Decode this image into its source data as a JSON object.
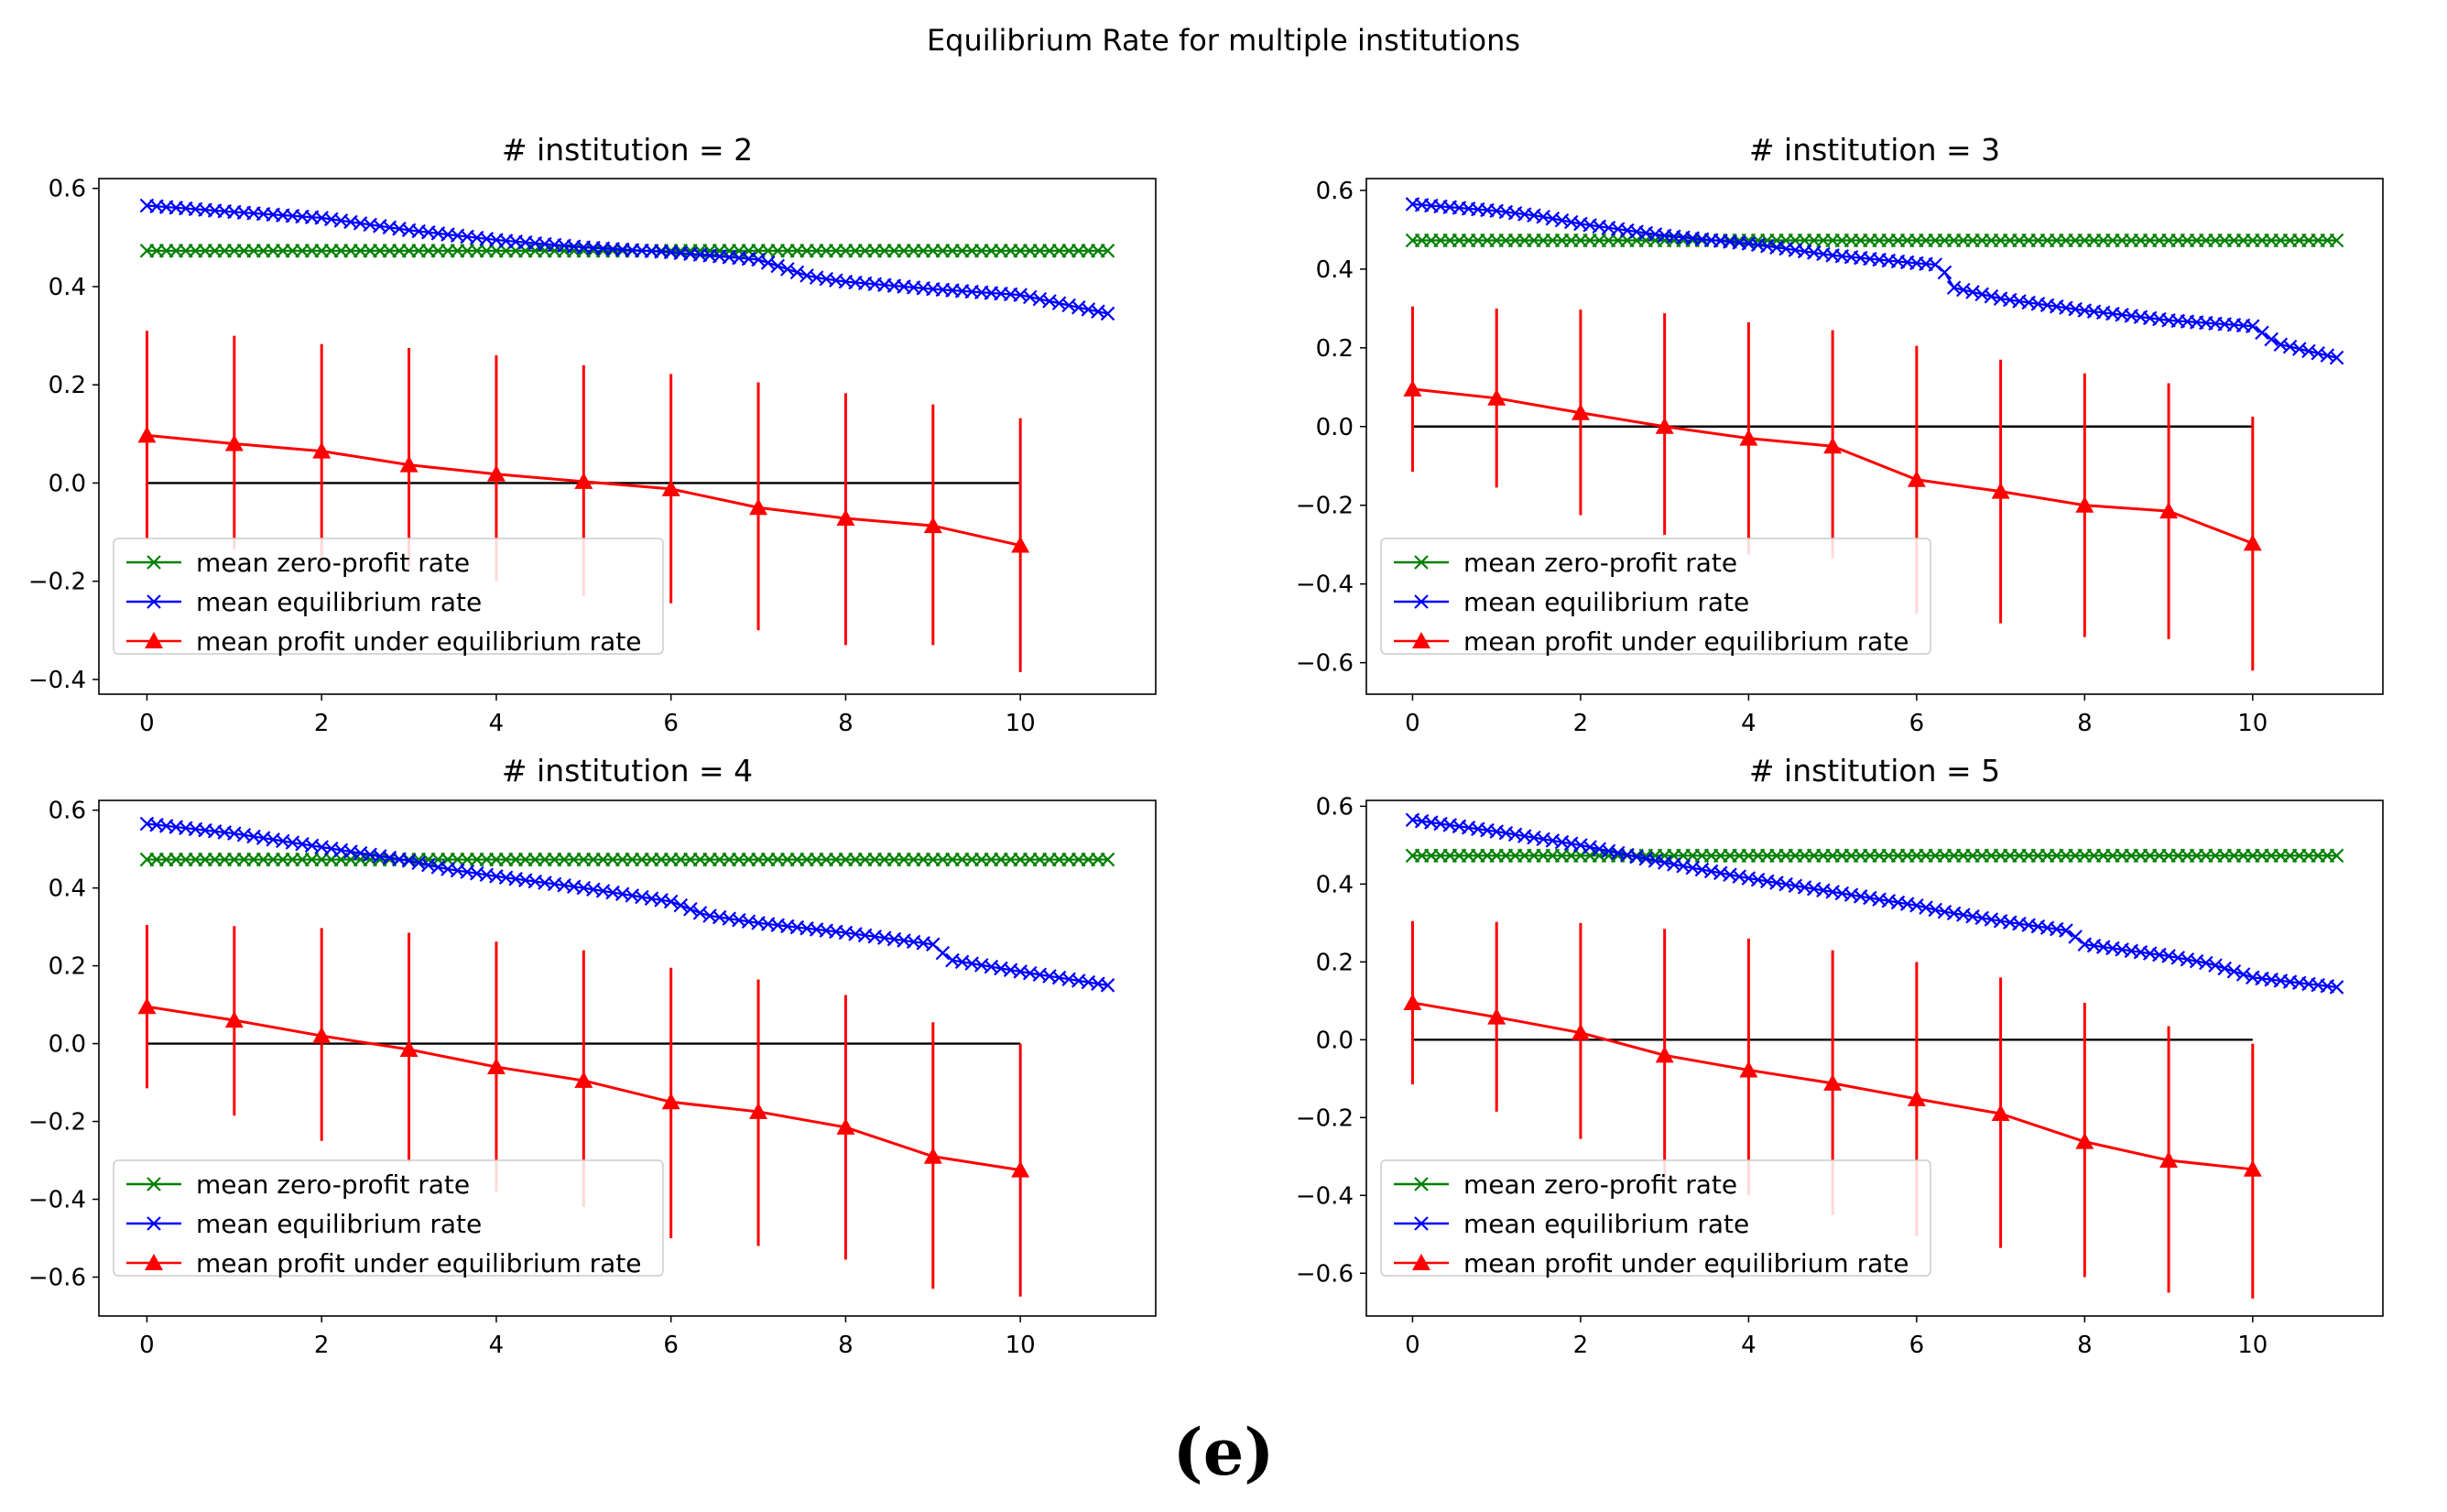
{
  "figure": {
    "title": "Equilibrium Rate for multiple institutions",
    "caption": "(e)"
  },
  "colors": {
    "zero_profit": "#008000",
    "equilibrium": "#0000ff",
    "profit": "#ff0000",
    "baseline": "#000000",
    "axes": "#000000"
  },
  "chart_data": [
    {
      "type": "line",
      "title": "# institution = 2",
      "xlabel": "",
      "ylabel": "",
      "xlim": [
        -0.55,
        11.55
      ],
      "ylim": [
        -0.43,
        0.62
      ],
      "xticks": [
        0,
        2,
        4,
        6,
        8,
        10
      ],
      "yticks": [
        -0.4,
        -0.2,
        0.0,
        0.2,
        0.4,
        0.6
      ],
      "legend_position": "lower-left",
      "series": [
        {
          "name": "mean zero-profit rate",
          "marker": "x",
          "color": "#008000",
          "x_range": [
            0,
            11
          ],
          "count": 100,
          "anchors": [
            [
              0,
              0.473
            ],
            [
              11,
              0.473
            ]
          ]
        },
        {
          "name": "mean equilibrium rate",
          "marker": "x",
          "color": "#0000ff",
          "x_range": [
            0,
            11
          ],
          "count": 100,
          "anchors": [
            [
              0,
              0.565
            ],
            [
              1,
              0.552
            ],
            [
              2,
              0.54
            ],
            [
              2.4,
              0.53
            ],
            [
              3,
              0.515
            ],
            [
              4,
              0.495
            ],
            [
              5,
              0.48
            ],
            [
              6,
              0.47
            ],
            [
              7,
              0.455
            ],
            [
              7.6,
              0.42
            ],
            [
              8,
              0.41
            ],
            [
              9,
              0.395
            ],
            [
              10,
              0.383
            ],
            [
              11,
              0.345
            ]
          ]
        },
        {
          "name": "mean profit under equilibrium rate",
          "marker": "^",
          "color": "#ff0000",
          "x": [
            0,
            1,
            2,
            3,
            4,
            5,
            6,
            7,
            8,
            9,
            10
          ],
          "y": [
            0.097,
            0.08,
            0.065,
            0.037,
            0.018,
            0.003,
            -0.012,
            -0.05,
            -0.072,
            -0.087,
            -0.127
          ],
          "err_low": [
            -0.115,
            -0.135,
            -0.15,
            -0.17,
            -0.2,
            -0.23,
            -0.245,
            -0.3,
            -0.33,
            -0.33,
            -0.385
          ],
          "err_high": [
            0.31,
            0.3,
            0.283,
            0.275,
            0.26,
            0.24,
            0.222,
            0.205,
            0.183,
            0.16,
            0.132
          ]
        }
      ],
      "baseline": {
        "x": [
          0,
          10
        ],
        "y": 0.0
      }
    },
    {
      "type": "line",
      "title": "# institution = 3",
      "xlabel": "",
      "ylabel": "",
      "xlim": [
        -0.55,
        11.55
      ],
      "ylim": [
        -0.68,
        0.63
      ],
      "xticks": [
        0,
        2,
        4,
        6,
        8,
        10
      ],
      "yticks": [
        -0.6,
        -0.4,
        -0.2,
        0.0,
        0.2,
        0.4,
        0.6
      ],
      "legend_position": "lower-left",
      "series": [
        {
          "name": "mean zero-profit rate",
          "marker": "x",
          "color": "#008000",
          "x_range": [
            0,
            11
          ],
          "count": 100,
          "anchors": [
            [
              0,
              0.473
            ],
            [
              11,
              0.473
            ]
          ]
        },
        {
          "name": "mean equilibrium rate",
          "marker": "x",
          "color": "#0000ff",
          "x_range": [
            0,
            11
          ],
          "count": 100,
          "anchors": [
            [
              0,
              0.565
            ],
            [
              1,
              0.548
            ],
            [
              1.5,
              0.535
            ],
            [
              2,
              0.515
            ],
            [
              3,
              0.485
            ],
            [
              4,
              0.465
            ],
            [
              5,
              0.435
            ],
            [
              6,
              0.415
            ],
            [
              6.3,
              0.41
            ],
            [
              6.4,
              0.355
            ],
            [
              7,
              0.325
            ],
            [
              8,
              0.295
            ],
            [
              9,
              0.27
            ],
            [
              10,
              0.255
            ],
            [
              10.3,
              0.21
            ],
            [
              11,
              0.175
            ]
          ]
        },
        {
          "name": "mean profit under equilibrium rate",
          "marker": "^",
          "color": "#ff0000",
          "x": [
            0,
            1,
            2,
            3,
            4,
            5,
            6,
            7,
            8,
            9,
            10
          ],
          "y": [
            0.095,
            0.072,
            0.035,
            0.0,
            -0.03,
            -0.05,
            -0.135,
            -0.165,
            -0.2,
            -0.215,
            -0.297
          ],
          "err_low": [
            -0.115,
            -0.155,
            -0.225,
            -0.275,
            -0.325,
            -0.335,
            -0.475,
            -0.5,
            -0.535,
            -0.54,
            -0.62
          ],
          "err_high": [
            0.305,
            0.3,
            0.297,
            0.288,
            0.265,
            0.245,
            0.205,
            0.17,
            0.135,
            0.11,
            0.025
          ]
        }
      ],
      "baseline": {
        "x": [
          0,
          10
        ],
        "y": 0.0
      }
    },
    {
      "type": "line",
      "title": "# institution = 4",
      "xlabel": "",
      "ylabel": "",
      "xlim": [
        -0.55,
        11.55
      ],
      "ylim": [
        -0.7,
        0.625
      ],
      "xticks": [
        0,
        2,
        4,
        6,
        8,
        10
      ],
      "yticks": [
        -0.6,
        -0.4,
        -0.2,
        0.0,
        0.2,
        0.4,
        0.6
      ],
      "legend_position": "lower-left",
      "series": [
        {
          "name": "mean zero-profit rate",
          "marker": "x",
          "color": "#008000",
          "x_range": [
            0,
            11
          ],
          "count": 100,
          "anchors": [
            [
              0,
              0.473
            ],
            [
              11,
              0.473
            ]
          ]
        },
        {
          "name": "mean equilibrium rate",
          "marker": "x",
          "color": "#0000ff",
          "x_range": [
            0,
            11
          ],
          "count": 100,
          "anchors": [
            [
              0,
              0.565
            ],
            [
              1,
              0.54
            ],
            [
              2,
              0.505
            ],
            [
              3,
              0.47
            ],
            [
              3.4,
              0.45
            ],
            [
              4,
              0.43
            ],
            [
              5,
              0.4
            ],
            [
              6,
              0.365
            ],
            [
              6.4,
              0.33
            ],
            [
              7,
              0.31
            ],
            [
              8,
              0.285
            ],
            [
              9,
              0.255
            ],
            [
              9.2,
              0.215
            ],
            [
              10,
              0.185
            ],
            [
              11,
              0.15
            ]
          ]
        },
        {
          "name": "mean profit under equilibrium rate",
          "marker": "^",
          "color": "#ff0000",
          "x": [
            0,
            1,
            2,
            3,
            4,
            5,
            6,
            7,
            8,
            9,
            10
          ],
          "y": [
            0.095,
            0.06,
            0.02,
            -0.015,
            -0.06,
            -0.095,
            -0.15,
            -0.175,
            -0.215,
            -0.29,
            -0.325
          ],
          "err_low": [
            -0.115,
            -0.185,
            -0.25,
            -0.305,
            -0.38,
            -0.42,
            -0.5,
            -0.52,
            -0.555,
            -0.63,
            -0.65
          ],
          "err_high": [
            0.305,
            0.302,
            0.297,
            0.285,
            0.262,
            0.24,
            0.195,
            0.165,
            0.125,
            0.055,
            0.0
          ]
        }
      ],
      "baseline": {
        "x": [
          0,
          10
        ],
        "y": 0.0
      }
    },
    {
      "type": "line",
      "title": "# institution = 5",
      "xlabel": "",
      "ylabel": "",
      "xlim": [
        -0.55,
        11.55
      ],
      "ylim": [
        -0.71,
        0.615
      ],
      "xticks": [
        0,
        2,
        4,
        6,
        8,
        10
      ],
      "yticks": [
        -0.6,
        -0.4,
        -0.2,
        0.0,
        0.2,
        0.4,
        0.6
      ],
      "legend_position": "lower-left",
      "series": [
        {
          "name": "mean zero-profit rate",
          "marker": "x",
          "color": "#008000",
          "x_range": [
            0,
            11
          ],
          "count": 100,
          "anchors": [
            [
              0,
              0.473
            ],
            [
              11,
              0.473
            ]
          ]
        },
        {
          "name": "mean equilibrium rate",
          "marker": "x",
          "color": "#0000ff",
          "x_range": [
            0,
            11
          ],
          "count": 100,
          "anchors": [
            [
              0,
              0.565
            ],
            [
              1,
              0.535
            ],
            [
              2,
              0.5
            ],
            [
              3,
              0.455
            ],
            [
              4,
              0.415
            ],
            [
              5,
              0.38
            ],
            [
              6,
              0.345
            ],
            [
              6.3,
              0.33
            ],
            [
              7,
              0.305
            ],
            [
              7.8,
              0.28
            ],
            [
              8,
              0.245
            ],
            [
              9,
              0.215
            ],
            [
              9.5,
              0.195
            ],
            [
              10,
              0.16
            ],
            [
              11,
              0.135
            ]
          ]
        },
        {
          "name": "mean profit under equilibrium rate",
          "marker": "^",
          "color": "#ff0000",
          "x": [
            0,
            1,
            2,
            3,
            4,
            5,
            6,
            7,
            8,
            9,
            10
          ],
          "y": [
            0.095,
            0.058,
            0.018,
            -0.04,
            -0.078,
            -0.112,
            -0.152,
            -0.19,
            -0.262,
            -0.31,
            -0.333
          ],
          "err_low": [
            -0.115,
            -0.185,
            -0.255,
            -0.36,
            -0.4,
            -0.45,
            -0.505,
            -0.535,
            -0.61,
            -0.65,
            -0.665
          ],
          "err_high": [
            0.305,
            0.303,
            0.3,
            0.285,
            0.26,
            0.23,
            0.2,
            0.16,
            0.095,
            0.035,
            -0.01
          ]
        }
      ],
      "baseline": {
        "x": [
          0,
          10
        ],
        "y": 0.0
      }
    }
  ]
}
